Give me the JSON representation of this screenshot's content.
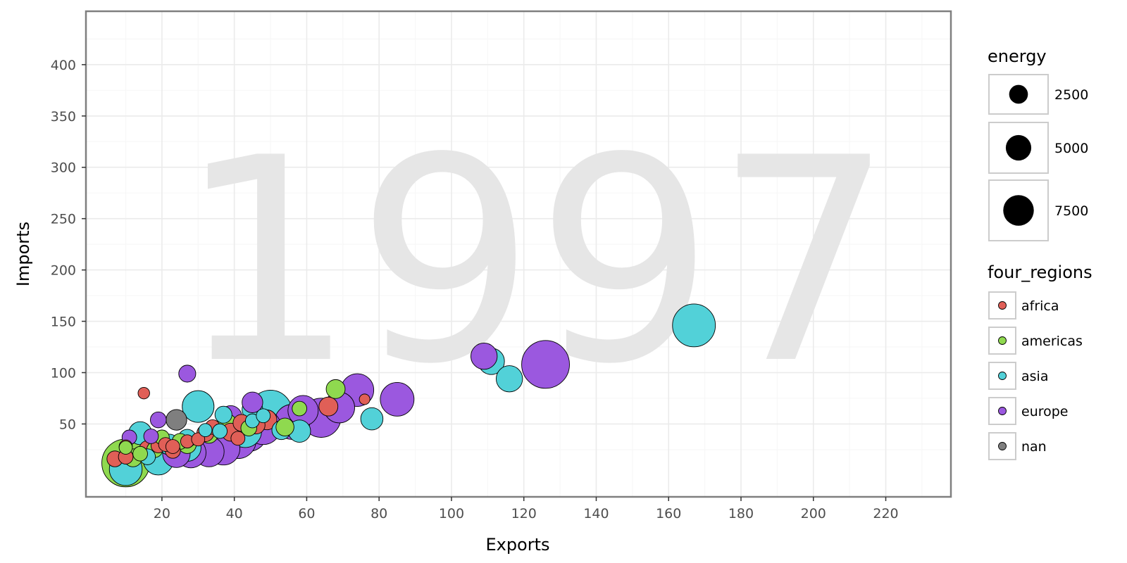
{
  "chart_data": {
    "type": "scatter",
    "title": "",
    "watermark": "1997",
    "xlabel": "Exports",
    "ylabel": "Imports",
    "xlim": [
      -1,
      238
    ],
    "ylim": [
      -21,
      452
    ],
    "x_ticks": [
      20,
      40,
      60,
      80,
      100,
      120,
      140,
      160,
      180,
      200,
      220
    ],
    "y_ticks": [
      50,
      100,
      150,
      200,
      250,
      300,
      350,
      400
    ],
    "grid": true,
    "size_legend": {
      "title": "energy",
      "entries": [
        {
          "label": "2500",
          "value": 2500
        },
        {
          "label": "5000",
          "value": 5000
        },
        {
          "label": "7500",
          "value": 7500
        }
      ]
    },
    "color_legend": {
      "title": "four_regions",
      "entries": [
        {
          "label": "africa",
          "color": "#e05f57"
        },
        {
          "label": "americas",
          "color": "#8fd94f"
        },
        {
          "label": "asia",
          "color": "#52d1d8"
        },
        {
          "label": "europe",
          "color": "#9b58df"
        },
        {
          "label": "nan",
          "color": "#7f7f7f"
        }
      ]
    },
    "series": [
      {
        "name": "africa",
        "color": "#e05f57",
        "points": [
          {
            "x": 15,
            "y": 80,
            "size": 200
          },
          {
            "x": 66,
            "y": 67,
            "size": 800
          },
          {
            "x": 76,
            "y": 74,
            "size": 150
          },
          {
            "x": 7,
            "y": 16,
            "size": 500
          },
          {
            "x": 10,
            "y": 18,
            "size": 400
          },
          {
            "x": 10,
            "y": 28,
            "size": 300
          },
          {
            "x": 16,
            "y": 26,
            "size": 500
          },
          {
            "x": 19,
            "y": 29,
            "size": 400
          },
          {
            "x": 21,
            "y": 30,
            "size": 350
          },
          {
            "x": 23,
            "y": 24,
            "size": 450
          },
          {
            "x": 27,
            "y": 33,
            "size": 300
          },
          {
            "x": 30,
            "y": 35,
            "size": 300
          },
          {
            "x": 32,
            "y": 41,
            "size": 600
          },
          {
            "x": 34,
            "y": 47,
            "size": 400
          },
          {
            "x": 39,
            "y": 42,
            "size": 700
          },
          {
            "x": 41,
            "y": 36,
            "size": 350
          },
          {
            "x": 42,
            "y": 51,
            "size": 600
          },
          {
            "x": 46,
            "y": 49,
            "size": 700
          },
          {
            "x": 49,
            "y": 54,
            "size": 900
          },
          {
            "x": 23,
            "y": 28,
            "size": 350
          }
        ]
      },
      {
        "name": "americas",
        "color": "#8fd94f",
        "points": [
          {
            "x": 10,
            "y": 12,
            "size": 7000
          },
          {
            "x": 12,
            "y": 17,
            "size": 700
          },
          {
            "x": 14,
            "y": 21,
            "size": 400
          },
          {
            "x": 18,
            "y": 25,
            "size": 500
          },
          {
            "x": 20,
            "y": 37,
            "size": 400
          },
          {
            "x": 25,
            "y": 33,
            "size": 500
          },
          {
            "x": 27,
            "y": 30,
            "size": 700
          },
          {
            "x": 33,
            "y": 40,
            "size": 700
          },
          {
            "x": 44,
            "y": 46,
            "size": 500
          },
          {
            "x": 54,
            "y": 47,
            "size": 700
          },
          {
            "x": 58,
            "y": 65,
            "size": 400
          },
          {
            "x": 68,
            "y": 84,
            "size": 800
          },
          {
            "x": 10,
            "y": 27,
            "size": 300
          },
          {
            "x": 38,
            "y": 50,
            "size": 900
          }
        ]
      },
      {
        "name": "asia",
        "color": "#52d1d8",
        "points": [
          {
            "x": 167,
            "y": 146,
            "size": 5500
          },
          {
            "x": 111,
            "y": 111,
            "size": 1800
          },
          {
            "x": 116,
            "y": 94,
            "size": 1800
          },
          {
            "x": 78,
            "y": 55,
            "size": 1200
          },
          {
            "x": 30,
            "y": 67,
            "size": 2800
          },
          {
            "x": 50,
            "y": 62,
            "size": 5500
          },
          {
            "x": 10,
            "y": 6,
            "size": 3000
          },
          {
            "x": 19,
            "y": 15,
            "size": 2500
          },
          {
            "x": 14,
            "y": 41,
            "size": 1300
          },
          {
            "x": 16,
            "y": 18,
            "size": 500
          },
          {
            "x": 22,
            "y": 30,
            "size": 1000
          },
          {
            "x": 27,
            "y": 27,
            "size": 2000
          },
          {
            "x": 37,
            "y": 33,
            "size": 3500
          },
          {
            "x": 43,
            "y": 43,
            "size": 3000
          },
          {
            "x": 45,
            "y": 64,
            "size": 1000
          },
          {
            "x": 53,
            "y": 44,
            "size": 800
          },
          {
            "x": 58,
            "y": 43,
            "size": 1200
          },
          {
            "x": 37,
            "y": 59,
            "size": 600
          },
          {
            "x": 36,
            "y": 43,
            "size": 400
          },
          {
            "x": 45,
            "y": 53,
            "size": 350
          },
          {
            "x": 48,
            "y": 58,
            "size": 350
          },
          {
            "x": 32,
            "y": 44,
            "size": 300
          },
          {
            "x": 27,
            "y": 36,
            "size": 700
          }
        ]
      },
      {
        "name": "europe",
        "color": "#9b58df",
        "points": [
          {
            "x": 126,
            "y": 108,
            "size": 7000
          },
          {
            "x": 109,
            "y": 116,
            "size": 1800
          },
          {
            "x": 85,
            "y": 74,
            "size": 3200
          },
          {
            "x": 74,
            "y": 83,
            "size": 3000
          },
          {
            "x": 69,
            "y": 66,
            "size": 2600
          },
          {
            "x": 64,
            "y": 56,
            "size": 4500
          },
          {
            "x": 59,
            "y": 63,
            "size": 2500
          },
          {
            "x": 56,
            "y": 52,
            "size": 3500
          },
          {
            "x": 48,
            "y": 47,
            "size": 3500
          },
          {
            "x": 44,
            "y": 41,
            "size": 3800
          },
          {
            "x": 41,
            "y": 34,
            "size": 3800
          },
          {
            "x": 37,
            "y": 26,
            "size": 3000
          },
          {
            "x": 33,
            "y": 23,
            "size": 2500
          },
          {
            "x": 28,
            "y": 22,
            "size": 2500
          },
          {
            "x": 24,
            "y": 21,
            "size": 2000
          },
          {
            "x": 45,
            "y": 71,
            "size": 1000
          },
          {
            "x": 27,
            "y": 99,
            "size": 600
          },
          {
            "x": 19,
            "y": 54,
            "size": 500
          },
          {
            "x": 11,
            "y": 37,
            "size": 400
          },
          {
            "x": 17,
            "y": 38,
            "size": 400
          },
          {
            "x": 39,
            "y": 57,
            "size": 1200
          }
        ]
      },
      {
        "name": "nan",
        "color": "#7f7f7f",
        "points": [
          {
            "x": 24,
            "y": 54,
            "size": 1000
          }
        ]
      }
    ]
  }
}
